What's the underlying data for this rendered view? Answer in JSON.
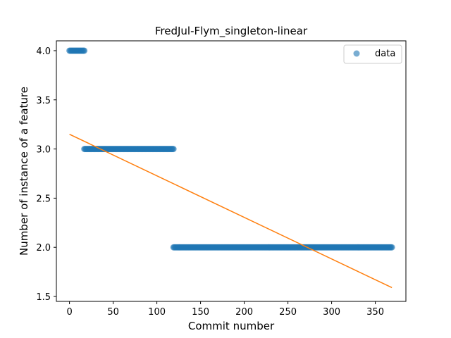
{
  "chart_data": {
    "type": "scatter",
    "title": "FredJul-Flym_singleton-linear",
    "xlabel": "Commit number",
    "ylabel": "Number of instance of a feature",
    "xlim": [
      -15,
      385
    ],
    "ylim": [
      1.45,
      4.1
    ],
    "xticks": [
      0,
      50,
      100,
      150,
      200,
      250,
      300,
      350
    ],
    "yticks": [
      1.5,
      2.0,
      2.5,
      3.0,
      3.5,
      4.0
    ],
    "ytick_labels": [
      "1.5",
      "2.0",
      "2.5",
      "3.0",
      "3.5",
      "4.0"
    ],
    "grid": false,
    "legend": {
      "placement": "upper right",
      "entries": [
        "data"
      ]
    },
    "colors": {
      "data": "#1f77b4",
      "fit": "#ff7f0e"
    },
    "series": [
      {
        "name": "data",
        "kind": "scatter",
        "segments": [
          {
            "x_start": 0,
            "x_end": 17,
            "y": 4.0
          },
          {
            "x_start": 17,
            "x_end": 119,
            "y": 3.0
          },
          {
            "x_start": 119,
            "x_end": 369,
            "y": 2.0
          }
        ]
      },
      {
        "kind": "line",
        "x": [
          0,
          369
        ],
        "y": [
          3.15,
          1.59
        ]
      }
    ]
  }
}
